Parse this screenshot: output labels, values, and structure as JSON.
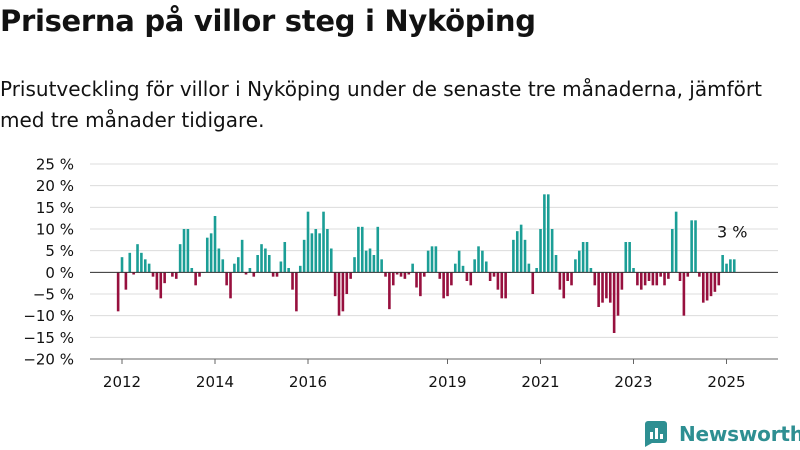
{
  "title": "Priserna på villor steg i Nyköping",
  "subtitle": "Prisutveckling för villor i Nyköping under de senaste tre månaderna, jämfört med tre månader tidigare.",
  "brand": {
    "name": "Newsworthy"
  },
  "colors": {
    "positive": "#1b9e96",
    "negative": "#97103e",
    "grid": "#dcdcdc",
    "text": "#121212",
    "brand": "#2e8f92"
  },
  "chart_data": {
    "type": "bar",
    "ylim": [
      -20,
      25
    ],
    "yticks": [
      -20,
      -15,
      -10,
      -5,
      0,
      5,
      10,
      15,
      20,
      25
    ],
    "ytick_labels": [
      "−20 %",
      "−15 %",
      "−10 %",
      "−5 %",
      "0 %",
      "5 %",
      "10 %",
      "15 %",
      "20 %",
      "25 %"
    ],
    "xticks": [
      {
        "label": "2012",
        "value": 2012.0
      },
      {
        "label": "2014",
        "value": 2014.0
      },
      {
        "label": "2016",
        "value": 2016.0
      },
      {
        "label": "2019",
        "value": 2019.0
      },
      {
        "label": "2021",
        "value": 2021.0
      },
      {
        "label": "2023",
        "value": 2023.0
      },
      {
        "label": "2025",
        "value": 2025.0
      }
    ],
    "start": 2011.917,
    "interval_months": 1,
    "values": [
      -9,
      3.5,
      -4,
      4.5,
      -0.5,
      6.5,
      4.5,
      3,
      2,
      -1,
      -4,
      -6,
      -2.5,
      0,
      -1,
      -1.5,
      6.5,
      10,
      10,
      1,
      -3,
      -1,
      0,
      8,
      9,
      13,
      5.5,
      3,
      -3,
      -6,
      2,
      3.5,
      7.5,
      -0.5,
      1,
      -1,
      4,
      6.5,
      5.5,
      4,
      -1,
      -1,
      2.5,
      7,
      1,
      -4,
      -9,
      1.5,
      7.5,
      14,
      9,
      10,
      9,
      14,
      10,
      5.5,
      -5.5,
      -10,
      -9,
      -5,
      -1.5,
      3.5,
      10.5,
      10.5,
      5,
      5.5,
      4,
      10.5,
      3,
      -1,
      -8.5,
      -3,
      -0.5,
      -1,
      -1.5,
      -0.5,
      2,
      -3.5,
      -5.5,
      -1,
      5,
      6,
      6,
      -1.5,
      -6,
      -5.5,
      -3,
      2,
      5,
      1.5,
      -2,
      -3,
      3,
      6,
      5,
      2.5,
      -2,
      -1,
      -4,
      -6,
      -6,
      0,
      7.5,
      9.5,
      11,
      7.5,
      2,
      -5,
      1,
      10,
      18,
      18,
      10,
      4,
      -4,
      -6,
      -2,
      -3,
      3,
      5,
      7,
      7,
      1,
      -3,
      -8,
      -7,
      -6,
      -7,
      -14,
      -10,
      -4,
      7,
      7,
      1,
      -3,
      -4,
      -3,
      -2,
      -3,
      -3,
      -1,
      -3,
      -1.5,
      10,
      14,
      -2,
      -10,
      -1,
      12,
      12,
      -1,
      -7,
      -6.5,
      -5.5,
      -4.5,
      -3,
      4,
      2,
      3,
      3
    ],
    "annotations": [
      {
        "text": "3 %"
      }
    ]
  }
}
